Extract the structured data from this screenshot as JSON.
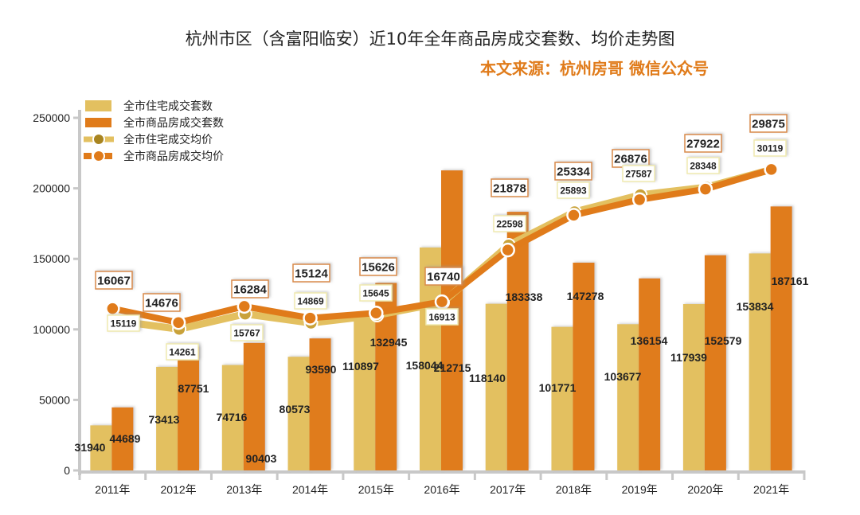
{
  "title": "杭州市区（含富阳临安）近10年全年商品房成交套数、均价走势图",
  "subtitle": "本文来源：杭州房哥 微信公众号",
  "chart_data": {
    "type": "bar",
    "title": "杭州市区（含富阳临安）近10年全年商品房成交套数、均价走势图",
    "categories": [
      "2011年",
      "2012年",
      "2013年",
      "2014年",
      "2015年",
      "2016年",
      "2017年",
      "2018年",
      "2019年",
      "2020年",
      "2021年"
    ],
    "ylim": [
      0,
      250000
    ],
    "yticks": [
      "0",
      "50000",
      "100000",
      "150000",
      "200000",
      "250000"
    ],
    "grid": false,
    "legend_placement": "top-left",
    "series": [
      {
        "name": "全市住宅成交套数",
        "type": "bar",
        "color": "#e3c060",
        "values": [
          31940,
          73413,
          74716,
          80573,
          110897,
          158044,
          118140,
          101771,
          103677,
          117939,
          153834
        ]
      },
      {
        "name": "全市商品房成交套数",
        "type": "bar",
        "color": "#e07b1a",
        "values": [
          44689,
          87751,
          90403,
          93590,
          132945,
          212715,
          183338,
          147278,
          136154,
          152579,
          187161
        ]
      },
      {
        "name": "全市住宅成交均价",
        "type": "line",
        "axis": "secondary",
        "color": "#e3c060",
        "values": [
          15119,
          14261,
          15767,
          14869,
          15645,
          16913,
          22598,
          25893,
          27587,
          28348,
          30119
        ]
      },
      {
        "name": "全市商品房成交均价",
        "type": "line",
        "axis": "secondary",
        "color": "#e07b1a",
        "values": [
          16067,
          14676,
          16284,
          15124,
          15626,
          16740,
          21878,
          25334,
          26876,
          27922,
          29875
        ]
      }
    ],
    "secondary_ylim": [
      0,
      35000
    ],
    "secondary_axis_visible": false
  }
}
